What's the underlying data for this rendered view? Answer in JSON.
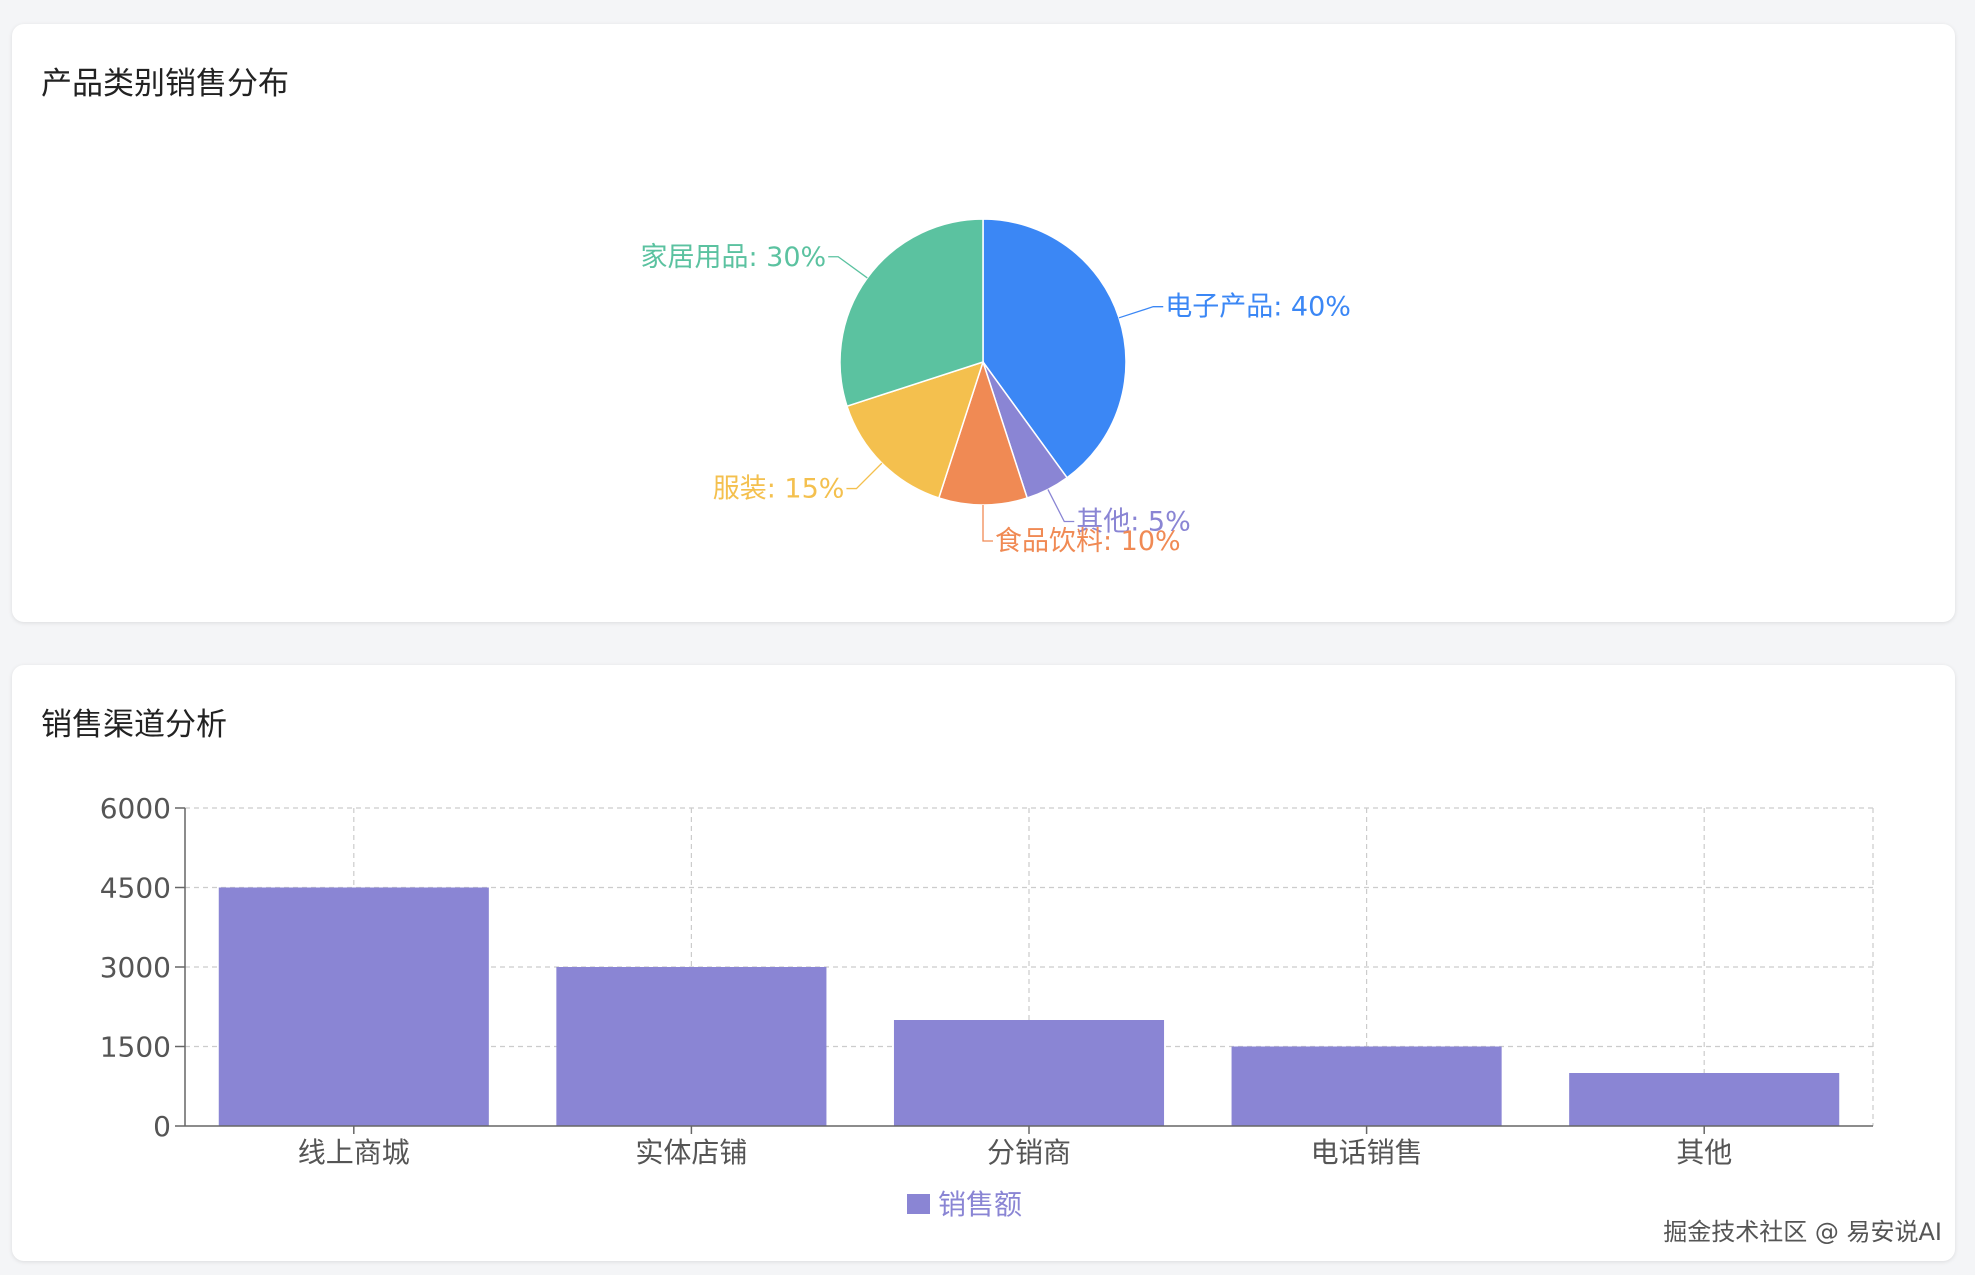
{
  "pie_card": {
    "title": "产品类别销售分布"
  },
  "bar_card": {
    "title": "销售渠道分析"
  },
  "watermark": "掘金技术社区 @ 易安说AI",
  "chart_data": [
    {
      "type": "pie",
      "title": "",
      "slices": [
        {
          "name": "电子产品",
          "value": 40,
          "label": "电子产品: 40%",
          "color": "#3b87f5"
        },
        {
          "name": "其他",
          "value": 5,
          "label": "其他: 5%",
          "color": "#8a85d4"
        },
        {
          "name": "食品饮料",
          "value": 10,
          "label": "食品饮料: 10%",
          "color": "#f08a54"
        },
        {
          "name": "服装",
          "value": 15,
          "label": "服装: 15%",
          "color": "#f4c04e"
        },
        {
          "name": "家居用品",
          "value": 30,
          "label": "家居用品: 30%",
          "color": "#5bc2a0"
        }
      ]
    },
    {
      "type": "bar",
      "title": "",
      "categories": [
        "线上商城",
        "实体店铺",
        "分销商",
        "电话销售",
        "其他"
      ],
      "series": [
        {
          "name": "销售额",
          "values": [
            4500,
            3000,
            2000,
            1500,
            1000
          ],
          "color": "#8a85d4"
        }
      ],
      "ylim": [
        0,
        6000
      ],
      "yticks": [
        "0",
        "1500",
        "3000",
        "4500",
        "6000"
      ],
      "grid": true,
      "legend": "bottom-center",
      "xlabel": "",
      "ylabel": ""
    }
  ]
}
